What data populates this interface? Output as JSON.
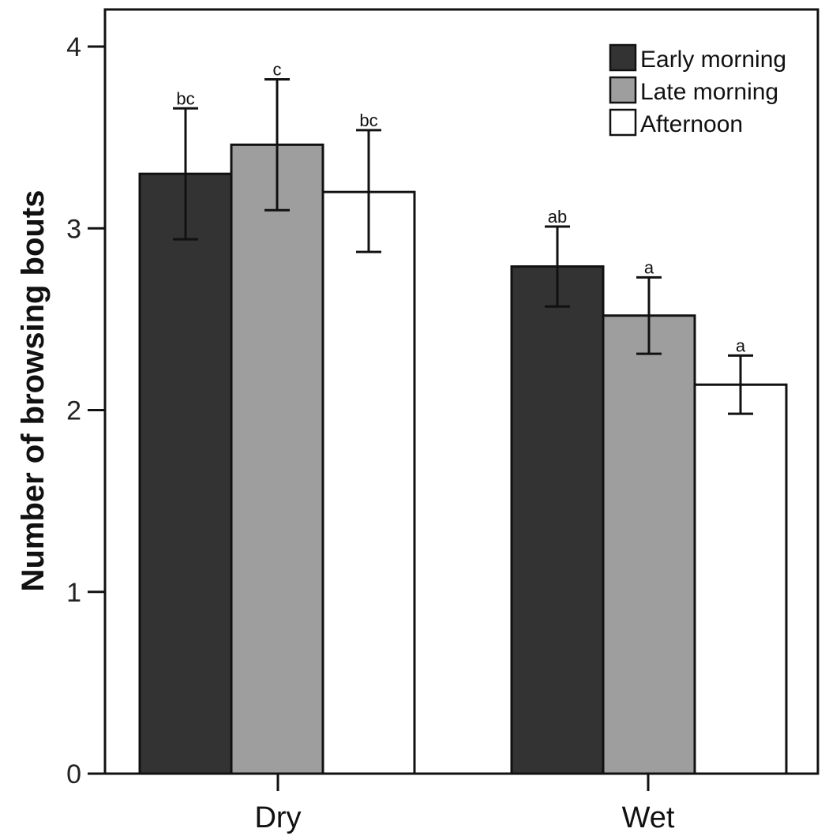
{
  "chart_data": {
    "type": "bar",
    "title": "",
    "xlabel": "",
    "ylabel": "Number of browsing bouts",
    "categories": [
      "Dry",
      "Wet"
    ],
    "ylim": [
      0,
      4.25
    ],
    "yticks": [
      0,
      1,
      2,
      3,
      4
    ],
    "ytick_labels": [
      "0",
      "1",
      "2",
      "3",
      "4"
    ],
    "grid": false,
    "legend_position": "top-right",
    "series": [
      {
        "name": "Early morning",
        "color": "#333333",
        "values": [
          3.3,
          2.79
        ],
        "error_low": [
          2.94,
          2.57
        ],
        "error_high": [
          3.66,
          3.01
        ],
        "significance": [
          "bc",
          "ab"
        ]
      },
      {
        "name": "Late morning",
        "color": "#9e9e9e",
        "values": [
          3.46,
          2.52
        ],
        "error_low": [
          3.1,
          2.31
        ],
        "error_high": [
          3.82,
          2.73
        ],
        "significance": [
          "c",
          "a"
        ]
      },
      {
        "name": "Afternoon",
        "color": "#ffffff",
        "values": [
          3.2,
          2.14
        ],
        "error_low": [
          2.87,
          1.98
        ],
        "error_high": [
          3.54,
          2.3
        ],
        "significance": [
          "bc",
          "a"
        ]
      }
    ]
  }
}
